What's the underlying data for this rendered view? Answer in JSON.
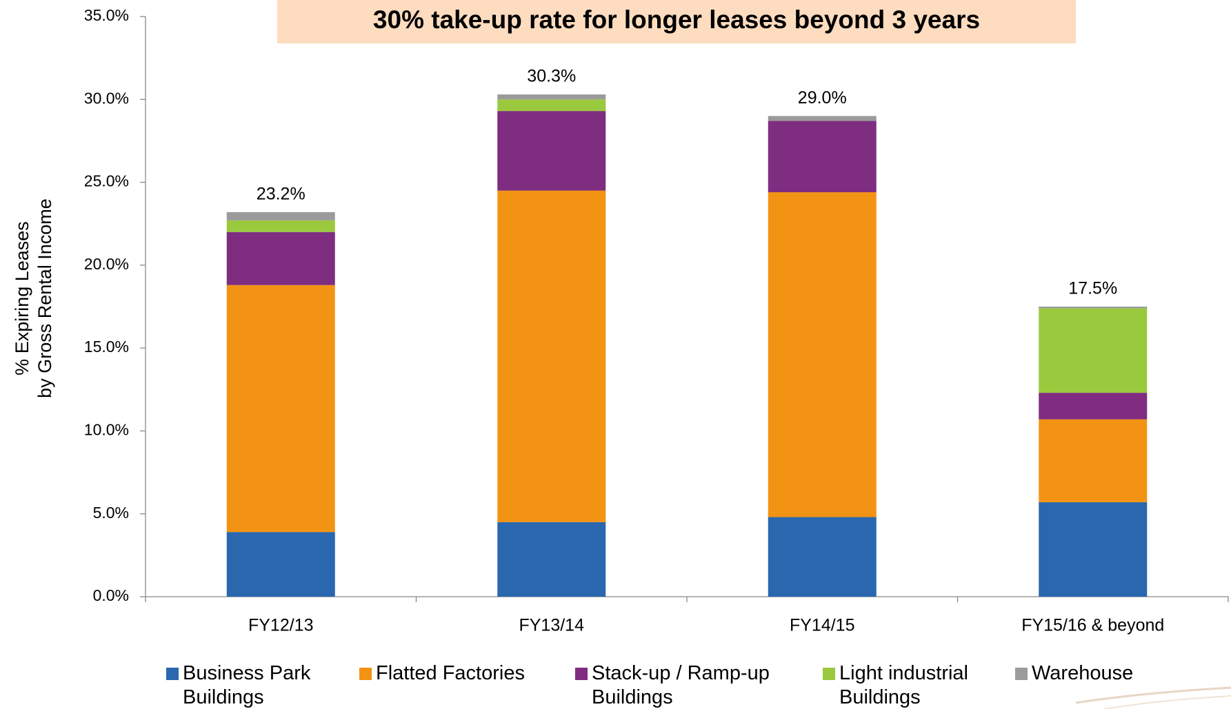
{
  "chart_data": {
    "type": "stacked_bar",
    "title": "30% take-up rate for longer leases beyond 3 years",
    "y_label": [
      "% Expiring Leases",
      "by Gross Rental Income"
    ],
    "categories": [
      "FY12/13",
      "FY13/14",
      "FY14/15",
      "FY15/16 & beyond"
    ],
    "series": [
      {
        "name": "Business Park Buildings",
        "color": "#2a67ae",
        "values": [
          3.9,
          4.5,
          4.8,
          5.7
        ]
      },
      {
        "name": "Flatted Factories",
        "color": "#f39314",
        "values": [
          14.9,
          20.0,
          19.6,
          5.0
        ]
      },
      {
        "name": "Stack-up / Ramp-up Buildings",
        "color": "#7f2d80",
        "values": [
          3.2,
          4.8,
          4.3,
          1.6
        ]
      },
      {
        "name": "Light industrial Buildings",
        "color": "#9bc93e",
        "values": [
          0.7,
          0.7,
          0,
          5.1
        ]
      },
      {
        "name": "Warehouse",
        "color": "#9b9b9b",
        "values": [
          0.5,
          0.3,
          0.3,
          0.1
        ]
      }
    ],
    "totals": [
      23.2,
      30.3,
      29.0,
      17.5
    ],
    "total_labels": [
      "23.2%",
      "30.3%",
      "29.0%",
      "17.5%"
    ],
    "ylim": [
      0,
      35
    ],
    "yticks": [
      {
        "value": 0,
        "label": "0.0%"
      },
      {
        "value": 5,
        "label": "5.0%"
      },
      {
        "value": 10,
        "label": "10.0%"
      },
      {
        "value": 15,
        "label": "15.0%"
      },
      {
        "value": 20,
        "label": "20.0%"
      },
      {
        "value": 25,
        "label": "25.0%"
      },
      {
        "value": 30,
        "label": "30.0%"
      },
      {
        "value": 35,
        "label": "35.0%"
      }
    ],
    "legend": "bottom"
  }
}
